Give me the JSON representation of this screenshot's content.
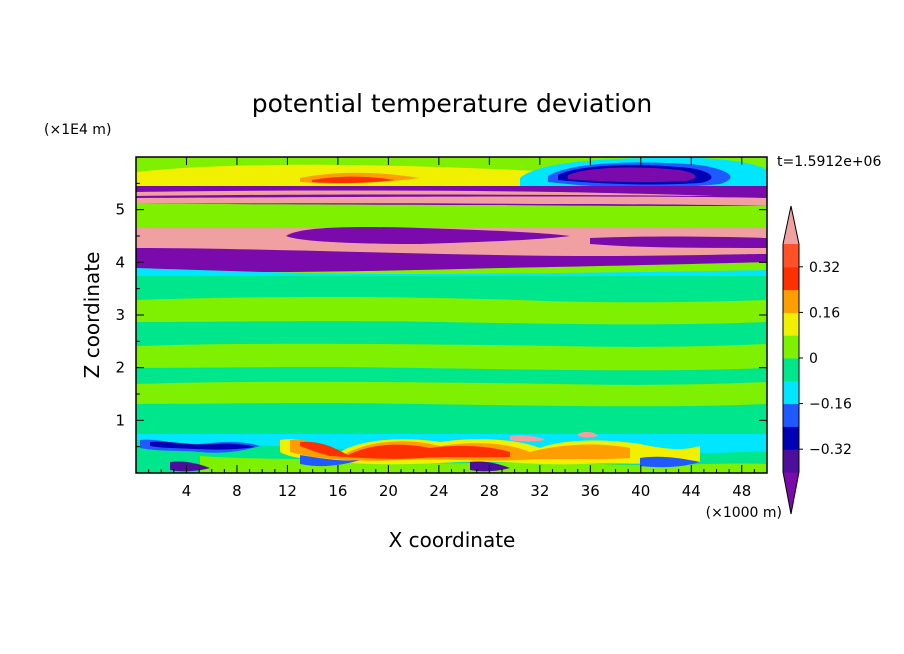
{
  "chart_data": {
    "type": "heatmap",
    "title": "potential temperature deviation",
    "time_label": "t=1.5912e+06",
    "xlabel": "X coordinate",
    "ylabel": "Z coordinate",
    "x_unit": "(×1000 m)",
    "y_unit": "(×1E4 m)",
    "xlim": [
      0,
      50
    ],
    "ylim": [
      0,
      6
    ],
    "x_ticks": [
      "4",
      "8",
      "12",
      "16",
      "20",
      "24",
      "28",
      "32",
      "36",
      "40",
      "44",
      "48"
    ],
    "y_ticks": [
      "1",
      "2",
      "3",
      "4",
      "5"
    ],
    "colorbar": {
      "levels": [
        -0.4,
        -0.32,
        -0.24,
        -0.16,
        -0.08,
        0,
        0.08,
        0.16,
        0.24,
        0.32,
        0.4
      ],
      "labels": [
        "0.32",
        "0.16",
        "0",
        "−0.16",
        "−0.32"
      ],
      "colors": [
        "#7a0aac",
        "#4b0f9c",
        "#0000b4",
        "#1e5aff",
        "#00e6ff",
        "#00e68c",
        "#7ef000",
        "#f0f000",
        "#ff9e00",
        "#ff3000",
        "#ff5028",
        "#f0a0a0"
      ],
      "extend": "both"
    },
    "bands": [
      {
        "z_range": [
          5.75,
          6.0
        ],
        "value": "0 to 0.08",
        "color": "#7ef000"
      },
      {
        "z_range": [
          5.45,
          5.75
        ],
        "value": "0.08 to 0.24",
        "color": "#f0f000"
      },
      {
        "z_range": [
          5.05,
          5.45
        ],
        "value": "< -0.4 / > 0.4 alternating",
        "color": "#7a0aac"
      },
      {
        "z_range": [
          4.6,
          5.0
        ],
        "value": "0 to 0.08",
        "color": "#7ef000"
      },
      {
        "z_range": [
          3.8,
          4.6
        ],
        "value": "< -0.4 / > 0.4 alternating",
        "color": "#f0a0a0"
      },
      {
        "z_range": [
          0.7,
          3.8
        ],
        "value": "-0.08 to 0.08",
        "color": "#00e68c"
      },
      {
        "z_range": [
          0.0,
          0.7
        ],
        "value": "turbulent -0.4 to 0.4",
        "color": "#00e6ff"
      }
    ]
  }
}
